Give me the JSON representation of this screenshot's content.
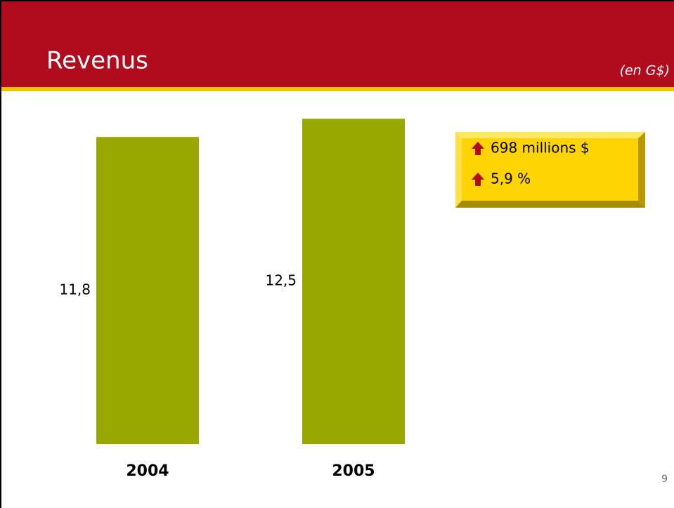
{
  "chart_data": {
    "type": "bar",
    "title": "Revenus",
    "subtitle": "(en G$)",
    "categories": [
      "2004",
      "2005"
    ],
    "values": [
      11.8,
      12.5
    ],
    "value_labels": [
      "11,8",
      "12,5"
    ],
    "color": "#99a800",
    "annotations": [
      "698 millions $",
      "5,9 %"
    ]
  },
  "page_number": "9"
}
